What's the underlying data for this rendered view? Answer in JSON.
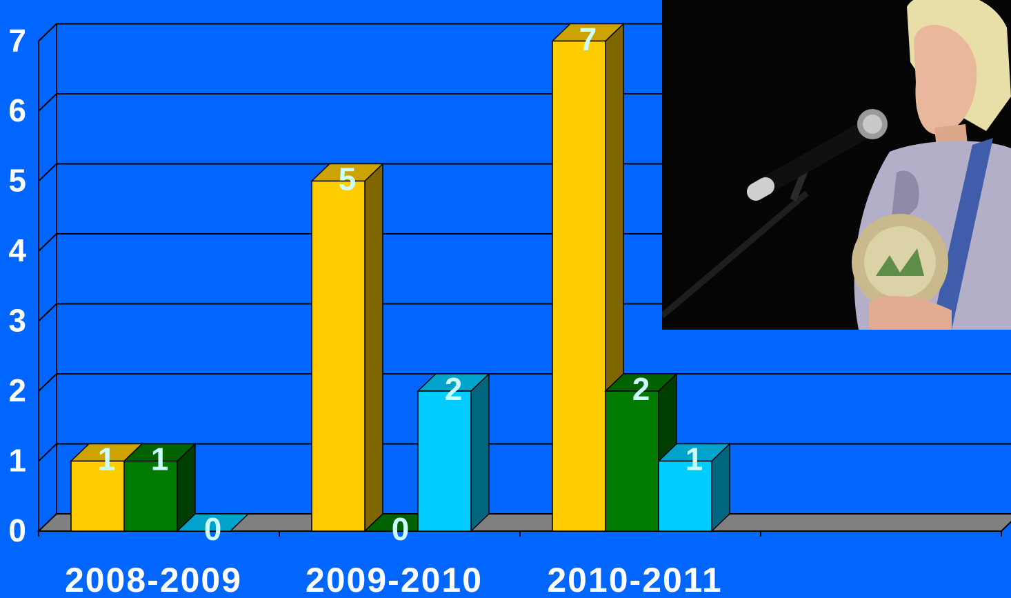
{
  "chart_data": {
    "type": "bar",
    "categories": [
      "2008-2009",
      "2009-2010",
      "2010-2011",
      ""
    ],
    "series": [
      {
        "color": "#FFCC00",
        "values": [
          1,
          5,
          7,
          null
        ]
      },
      {
        "color": "#007A00",
        "values": [
          1,
          0,
          2,
          null
        ]
      },
      {
        "color": "#00CCFF",
        "values": [
          0,
          2,
          1,
          null
        ]
      }
    ],
    "yticks": [
      "0",
      "1",
      "2",
      "3",
      "4",
      "5",
      "6",
      "7"
    ],
    "ylim": [
      0,
      7
    ],
    "grid": true,
    "style": "3d-bar"
  },
  "colors": {
    "background": "#0066FF",
    "floor": "#808080",
    "value_label": "#CCFFFF"
  },
  "photo": {
    "subject": "speaker-with-microphone"
  }
}
